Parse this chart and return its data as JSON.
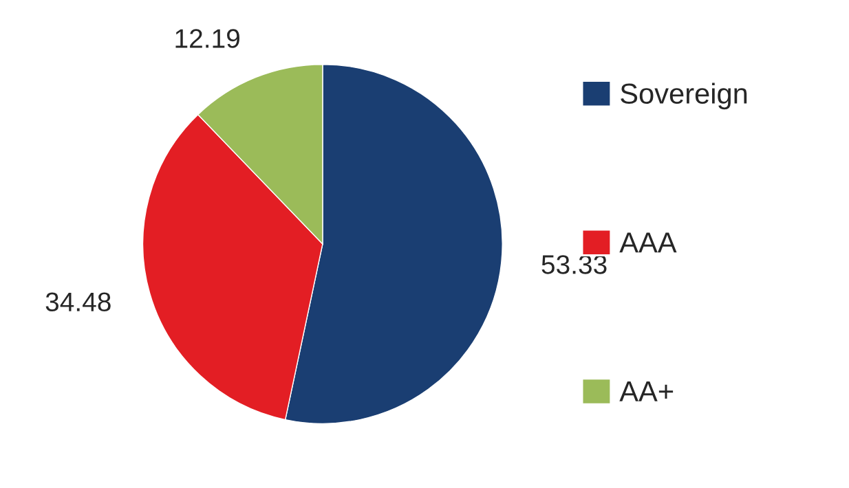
{
  "chart_data": {
    "type": "pie",
    "categories": [
      "Sovereign",
      "AAA",
      "AA+"
    ],
    "values": [
      53.33,
      34.48,
      12.19
    ],
    "colors": [
      "#1a3e72",
      "#e31e24",
      "#9bbb59"
    ],
    "data_labels": true,
    "legend": "right"
  }
}
